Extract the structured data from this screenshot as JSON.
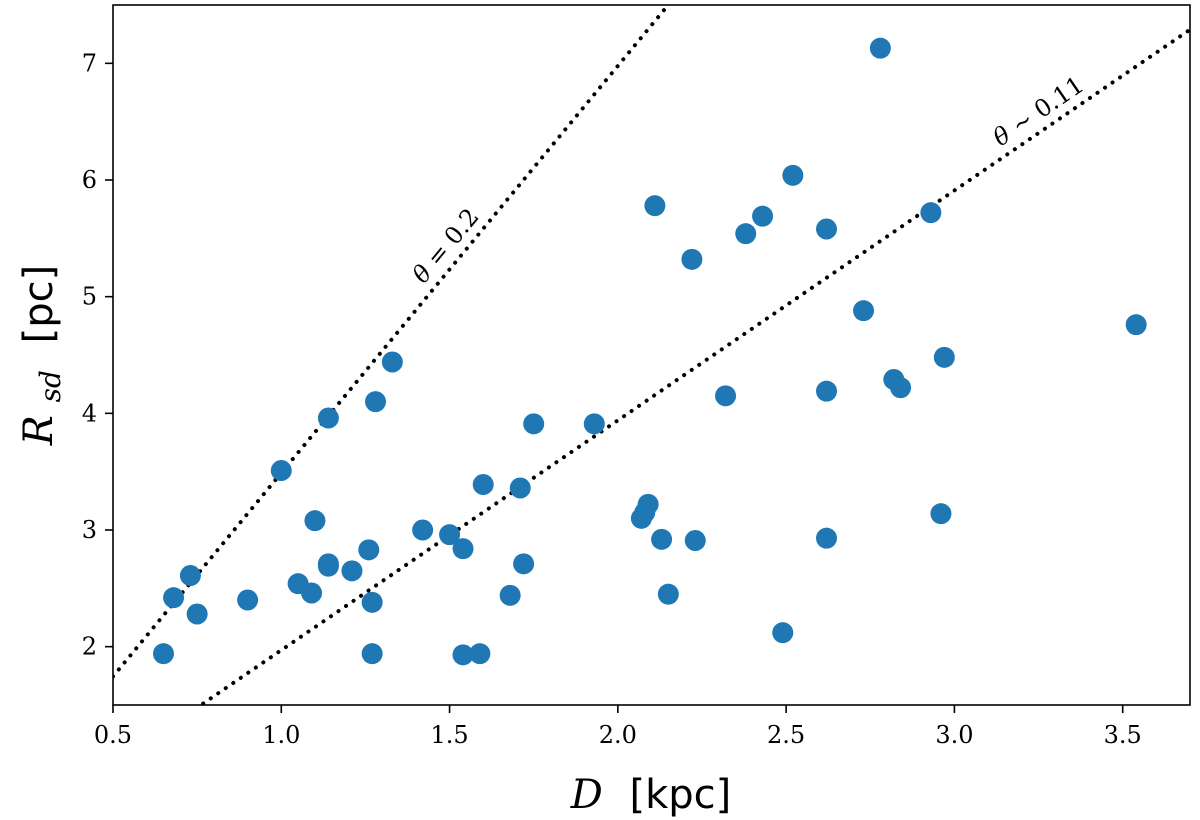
{
  "chart_data": {
    "type": "scatter",
    "title": "",
    "xlabel": {
      "symbol": "D",
      "unit": "[kpc]"
    },
    "ylabel": {
      "symbol": "R",
      "subscript": "sd",
      "unit": "[pc]"
    },
    "xlim": [
      0.5,
      3.7
    ],
    "ylim": [
      1.5,
      7.5
    ],
    "x_ticks": [
      0.5,
      1.0,
      1.5,
      2.0,
      2.5,
      3.0,
      3.5
    ],
    "x_tick_labels": [
      "0.5",
      "1.0",
      "1.5",
      "2.0",
      "2.5",
      "3.0",
      "3.5"
    ],
    "y_ticks": [
      2,
      3,
      4,
      5,
      6,
      7
    ],
    "y_tick_labels": [
      "2",
      "3",
      "4",
      "5",
      "6",
      "7"
    ],
    "grid": false,
    "marker_color": "#1f77b4",
    "points": [
      {
        "x": 0.65,
        "y": 1.94
      },
      {
        "x": 0.68,
        "y": 2.42
      },
      {
        "x": 0.73,
        "y": 2.61
      },
      {
        "x": 0.75,
        "y": 2.28
      },
      {
        "x": 0.9,
        "y": 2.4
      },
      {
        "x": 1.0,
        "y": 3.51
      },
      {
        "x": 1.05,
        "y": 2.54
      },
      {
        "x": 1.09,
        "y": 2.46
      },
      {
        "x": 1.1,
        "y": 3.08
      },
      {
        "x": 1.14,
        "y": 2.69
      },
      {
        "x": 1.14,
        "y": 2.71
      },
      {
        "x": 1.14,
        "y": 3.96
      },
      {
        "x": 1.21,
        "y": 2.65
      },
      {
        "x": 1.26,
        "y": 2.83
      },
      {
        "x": 1.27,
        "y": 2.38
      },
      {
        "x": 1.27,
        "y": 1.94
      },
      {
        "x": 1.28,
        "y": 4.1
      },
      {
        "x": 1.33,
        "y": 4.44
      },
      {
        "x": 1.42,
        "y": 3.0
      },
      {
        "x": 1.5,
        "y": 2.96
      },
      {
        "x": 1.54,
        "y": 2.84
      },
      {
        "x": 1.54,
        "y": 1.93
      },
      {
        "x": 1.59,
        "y": 1.94
      },
      {
        "x": 1.6,
        "y": 3.39
      },
      {
        "x": 1.68,
        "y": 2.44
      },
      {
        "x": 1.71,
        "y": 3.36
      },
      {
        "x": 1.72,
        "y": 2.71
      },
      {
        "x": 1.75,
        "y": 3.91
      },
      {
        "x": 1.93,
        "y": 3.91
      },
      {
        "x": 2.07,
        "y": 3.1
      },
      {
        "x": 2.08,
        "y": 3.15
      },
      {
        "x": 2.09,
        "y": 3.22
      },
      {
        "x": 2.11,
        "y": 5.78
      },
      {
        "x": 2.13,
        "y": 2.92
      },
      {
        "x": 2.15,
        "y": 2.45
      },
      {
        "x": 2.22,
        "y": 5.32
      },
      {
        "x": 2.23,
        "y": 2.91
      },
      {
        "x": 2.32,
        "y": 4.15
      },
      {
        "x": 2.38,
        "y": 5.54
      },
      {
        "x": 2.43,
        "y": 5.69
      },
      {
        "x": 2.49,
        "y": 2.12
      },
      {
        "x": 2.52,
        "y": 6.04
      },
      {
        "x": 2.62,
        "y": 5.58
      },
      {
        "x": 2.62,
        "y": 4.19
      },
      {
        "x": 2.62,
        "y": 2.93
      },
      {
        "x": 2.73,
        "y": 4.88
      },
      {
        "x": 2.78,
        "y": 7.13
      },
      {
        "x": 2.82,
        "y": 4.29
      },
      {
        "x": 2.84,
        "y": 4.22
      },
      {
        "x": 2.93,
        "y": 5.72
      },
      {
        "x": 2.96,
        "y": 3.14
      },
      {
        "x": 2.97,
        "y": 4.48
      },
      {
        "x": 3.54,
        "y": 4.76
      }
    ],
    "reference_lines": [
      {
        "name": "theta-0.2",
        "label_symbol": "θ",
        "label_text": " = 0.2",
        "slope": 3.489,
        "style": "dotted",
        "label_at_x": 1.53
      },
      {
        "name": "theta-0.11",
        "label_symbol": "θ",
        "label_text": " ∼ 0.11",
        "slope": 1.97,
        "style": "dotted",
        "label_at_x": 3.28
      }
    ]
  }
}
